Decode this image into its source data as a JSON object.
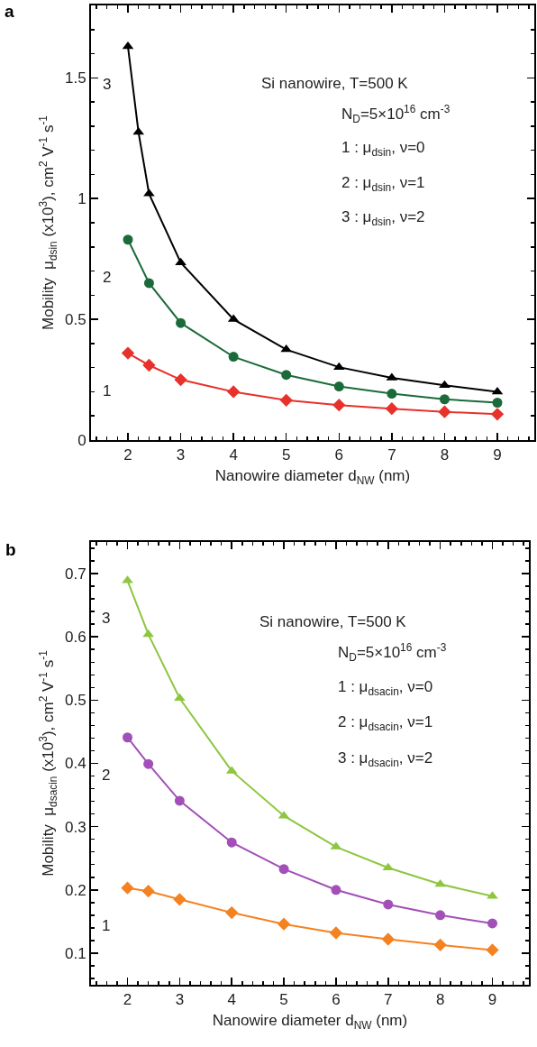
{
  "chart_data": [
    {
      "type": "line",
      "title": "a",
      "xlabel": "Nanowire diameter d$_{NW}$ (nm)",
      "ylabel": "Mobility  μ$_{dsin}$ (x10$^{3}$), cm$^{2}$ V$^{-1}$ s$^{-1}$",
      "xlim": [
        1.3,
        9.7
      ],
      "xticks": [
        2,
        3,
        4,
        5,
        6,
        7,
        8,
        9
      ],
      "ylim": [
        0,
        1.8
      ],
      "yticks": [
        0,
        0.5,
        1,
        1.5
      ],
      "grid": false,
      "legend": false,
      "line_style": "solid",
      "annotations": [
        "Si nanowire, T=500 K",
        "N$_{D}$=5×10$^{16}$ cm$^{-3}$",
        "1 : μ$_{dsin}$, ν=0",
        "2 : μ$_{dsin}$, ν=1",
        "3 : μ$_{dsin}$, ν=2"
      ],
      "series": [
        {
          "name": "1",
          "color": "#e8312b",
          "marker": "diamond",
          "x": [
            2,
            2.4,
            3,
            4,
            5,
            6,
            7,
            8,
            9
          ],
          "values": [
            0.36,
            0.31,
            0.25,
            0.2,
            0.165,
            0.145,
            0.13,
            0.117,
            0.107
          ]
        },
        {
          "name": "2",
          "color": "#1b6b3a",
          "marker": "circle",
          "x": [
            2,
            2.4,
            3,
            4,
            5,
            6,
            7,
            8,
            9
          ],
          "values": [
            0.83,
            0.65,
            0.485,
            0.345,
            0.27,
            0.222,
            0.192,
            0.169,
            0.155
          ]
        },
        {
          "name": "3",
          "color": "#000000",
          "marker": "triangle",
          "x": [
            2,
            2.2,
            2.4,
            3,
            4,
            5,
            6,
            7,
            8,
            9
          ],
          "values": [
            1.63,
            1.275,
            1.02,
            0.735,
            0.5,
            0.375,
            0.302,
            0.258,
            0.227,
            0.2
          ]
        }
      ]
    },
    {
      "type": "line",
      "title": "b",
      "xlabel": "Nanowire diameter d$_{NW}$ (nm)",
      "ylabel": "Mobility  μ$_{dsacin}$ (x10$^{3}$), cm$^{2}$ V$^{-1}$ s$^{-1}$",
      "xlim": [
        1.3,
        9.7
      ],
      "xticks": [
        2,
        3,
        4,
        5,
        6,
        7,
        8,
        9
      ],
      "ylim": [
        0.05,
        0.75
      ],
      "yticks": [
        0.1,
        0.2,
        0.3,
        0.4,
        0.5,
        0.6,
        0.7
      ],
      "grid": false,
      "legend": false,
      "line_style": "solid",
      "annotations": [
        "Si nanowire, T=500 K",
        "N$_{D}$=5×10$^{16}$ cm$^{-3}$",
        "1 : μ$_{dsacin}$, ν=0",
        "2 : μ$_{dsacin}$, ν=1",
        "3 : μ$_{dsacin}$, ν=2"
      ],
      "series": [
        {
          "name": "1",
          "color": "#f58220",
          "marker": "diamond",
          "x": [
            2,
            2.4,
            3,
            4,
            5,
            6,
            7,
            8,
            9
          ],
          "values": [
            0.203,
            0.198,
            0.185,
            0.164,
            0.146,
            0.132,
            0.122,
            0.113,
            0.105
          ]
        },
        {
          "name": "2",
          "color": "#a34fb8",
          "marker": "circle",
          "x": [
            2,
            2.4,
            3,
            4,
            5,
            6,
            7,
            8,
            9
          ],
          "values": [
            0.441,
            0.399,
            0.341,
            0.275,
            0.233,
            0.2,
            0.177,
            0.16,
            0.147
          ]
        },
        {
          "name": "3",
          "color": "#8dc63f",
          "marker": "triangle",
          "x": [
            2,
            2.4,
            3,
            4,
            5,
            6,
            7,
            8,
            9
          ],
          "values": [
            0.689,
            0.604,
            0.503,
            0.388,
            0.317,
            0.268,
            0.235,
            0.209,
            0.19
          ]
        }
      ]
    }
  ]
}
